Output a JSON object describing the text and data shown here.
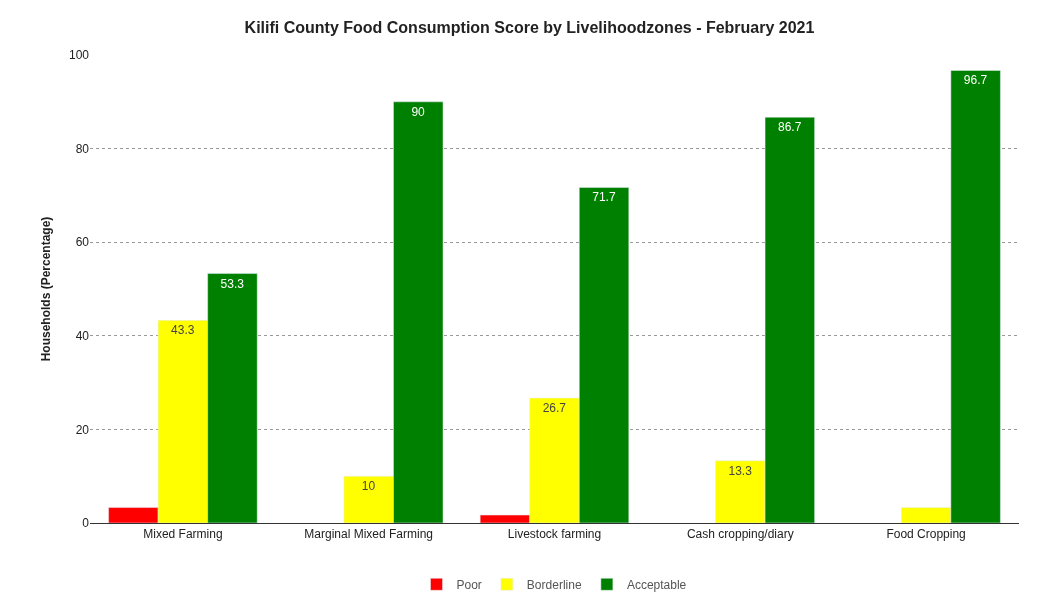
{
  "chart_data": {
    "type": "bar",
    "title": "Kilifi County Food Consumption Score by Livelihoodzones - February 2021",
    "ylabel": "Households (Percentage)",
    "categories": [
      "Mixed Farming",
      "Marginal Mixed Farming",
      "Livestock farming",
      "Cash cropping/diary",
      "Food Cropping"
    ],
    "series": [
      {
        "name": "Poor",
        "color": "#ff0000",
        "values": [
          3.3,
          null,
          1.7,
          null,
          null
        ],
        "value_labels": [
          null,
          null,
          null,
          null,
          null
        ]
      },
      {
        "name": "Borderline",
        "color": "#ffff00",
        "values": [
          43.3,
          10,
          26.7,
          13.3,
          3.3
        ],
        "value_labels": [
          "43.3",
          "10",
          "26.7",
          "13.3",
          null
        ]
      },
      {
        "name": "Acceptable",
        "color": "#008000",
        "values": [
          53.3,
          90,
          71.7,
          86.7,
          96.7
        ],
        "value_labels": [
          "53.3",
          "90",
          "71.7",
          "86.7",
          "96.7"
        ]
      }
    ],
    "ylim": [
      0,
      100
    ],
    "yticks": [
      0,
      20,
      40,
      60,
      80,
      100
    ],
    "grid": "y",
    "legend": "bottom"
  }
}
